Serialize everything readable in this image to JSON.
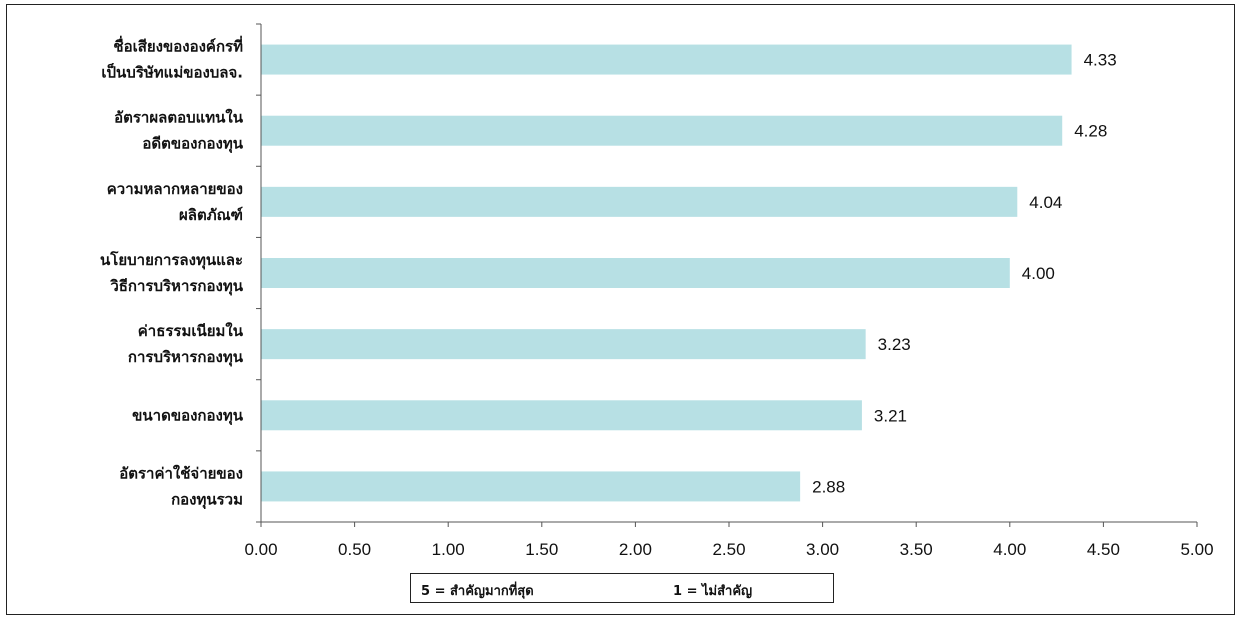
{
  "chart_data": {
    "type": "bar",
    "orientation": "horizontal",
    "categories": [
      [
        "ชื่อเสียงขององค์กรที่",
        "เป็นบริษัทแม่ของบลจ."
      ],
      [
        "อัตราผลตอบแทนใน",
        "อดีตของกองทุน"
      ],
      [
        "ความหลากหลายของ",
        "ผลิตภัณฑ์"
      ],
      [
        "นโยบายการลงทุนและ",
        "วิธีการบริหารกองทุน"
      ],
      [
        "ค่าธรรมเนียมใน",
        "การบริหารกองทุน"
      ],
      [
        "ขนาดของกองทุน"
      ],
      [
        "อัตราค่าใช้จ่ายของ",
        "กองทุนรวม"
      ]
    ],
    "values": [
      4.33,
      4.28,
      4.04,
      4.0,
      3.23,
      3.21,
      2.88
    ],
    "value_labels": [
      "4.33",
      "4.28",
      "4.04",
      "4.00",
      "3.23",
      "3.21",
      "2.88"
    ],
    "xlim": [
      0,
      5
    ],
    "x_ticks": [
      "0.00",
      "0.50",
      "1.00",
      "1.50",
      "2.00",
      "2.50",
      "3.00",
      "3.50",
      "4.00",
      "4.50",
      "5.00"
    ],
    "grid": false,
    "bar_color": "#b7e0e4",
    "legend": {
      "placement": "bottom",
      "left": "5 = สำคัญมากที่สุด",
      "right": "1 = ไม่สำคัญ"
    }
  }
}
